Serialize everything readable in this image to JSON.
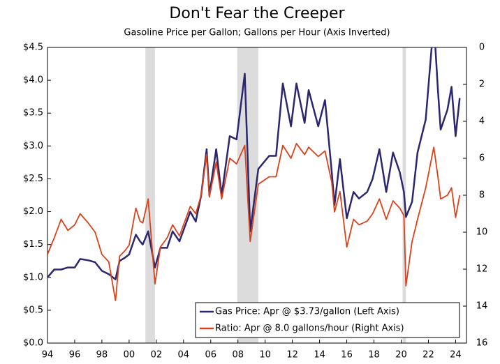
{
  "chart_data": {
    "type": "line",
    "title": "Don't Fear the Creeper",
    "subtitle": "Gasoline Price per Gallon; Gallons per Hour (Axis Inverted)",
    "x": [
      1994.0,
      1994.5,
      1995.0,
      1995.5,
      1996.0,
      1996.4,
      1997.0,
      1997.5,
      1998.0,
      1998.5,
      1999.0,
      1999.3,
      1999.7,
      2000.0,
      2000.5,
      2000.8,
      2001.0,
      2001.4,
      2001.9,
      2002.3,
      2002.8,
      2003.2,
      2003.7,
      2004.5,
      2004.9,
      2005.3,
      2005.7,
      2005.9,
      2006.4,
      2006.8,
      2007.4,
      2007.9,
      2008.5,
      2008.9,
      2009.5,
      2010.3,
      2010.8,
      2011.3,
      2011.9,
      2012.3,
      2012.9,
      2013.2,
      2013.9,
      2014.4,
      2014.9,
      2015.1,
      2015.5,
      2016.0,
      2016.5,
      2016.9,
      2017.5,
      2017.9,
      2018.4,
      2018.9,
      2019.4,
      2019.9,
      2020.2,
      2020.35,
      2020.8,
      2021.2,
      2021.8,
      2022.4,
      2022.7,
      2022.9,
      2023.4,
      2023.7,
      2024.0,
      2024.3
    ],
    "series": [
      {
        "name": "Gas Price: Apr @ $3.73/gallon (Left Axis)",
        "color": "#2b2670",
        "axis": "y",
        "values": [
          1.0,
          1.12,
          1.12,
          1.15,
          1.15,
          1.28,
          1.26,
          1.23,
          1.1,
          1.05,
          0.97,
          1.25,
          1.3,
          1.35,
          1.65,
          1.55,
          1.5,
          1.7,
          1.15,
          1.45,
          1.45,
          1.7,
          1.55,
          2.0,
          1.85,
          2.25,
          2.95,
          2.25,
          2.95,
          2.25,
          3.15,
          3.1,
          4.1,
          1.7,
          2.65,
          2.85,
          2.85,
          3.95,
          3.3,
          3.95,
          3.35,
          3.85,
          3.3,
          3.7,
          2.6,
          2.1,
          2.8,
          1.9,
          2.3,
          2.2,
          2.3,
          2.5,
          2.95,
          2.3,
          2.9,
          2.6,
          2.3,
          1.92,
          2.15,
          2.9,
          3.4,
          4.9,
          3.85,
          3.25,
          3.55,
          3.9,
          3.15,
          3.73
        ]
      },
      {
        "name": "Ratio: Apr @ 8.0 gallons/hour (Right Axis)",
        "color": "#d8421c",
        "axis": "y2",
        "values": [
          11.2,
          10.3,
          9.3,
          9.9,
          9.6,
          9.0,
          9.5,
          10.0,
          11.2,
          11.6,
          13.7,
          11.3,
          11.0,
          10.7,
          8.7,
          9.4,
          9.5,
          8.2,
          12.8,
          10.8,
          10.3,
          9.6,
          10.2,
          8.6,
          9.0,
          8.0,
          5.8,
          8.1,
          6.2,
          8.2,
          6.0,
          6.3,
          5.3,
          10.5,
          7.4,
          7.0,
          7.0,
          5.3,
          6.0,
          5.2,
          5.8,
          5.4,
          5.9,
          5.6,
          7.3,
          8.9,
          7.8,
          10.8,
          9.3,
          9.6,
          9.4,
          9.0,
          8.2,
          9.3,
          8.3,
          8.7,
          9.1,
          12.9,
          10.5,
          9.3,
          7.6,
          5.4,
          7.0,
          8.2,
          8.0,
          7.6,
          9.2,
          8.0
        ]
      }
    ],
    "shaded_ranges": [
      [
        2001.2,
        2001.9
      ],
      [
        2007.95,
        2009.5
      ],
      [
        2020.1,
        2020.35
      ]
    ],
    "shade_color": "#dcdcdc",
    "xlim": [
      1994,
      2024.8
    ],
    "xticks": [
      {
        "value": 1994,
        "label": "94"
      },
      {
        "value": 1996,
        "label": "96"
      },
      {
        "value": 1998,
        "label": "98"
      },
      {
        "value": 2000,
        "label": "00"
      },
      {
        "value": 2002,
        "label": "02"
      },
      {
        "value": 2004,
        "label": "04"
      },
      {
        "value": 2006,
        "label": "06"
      },
      {
        "value": 2008,
        "label": "08"
      },
      {
        "value": 2010,
        "label": "10"
      },
      {
        "value": 2012,
        "label": "12"
      },
      {
        "value": 2014,
        "label": "14"
      },
      {
        "value": 2016,
        "label": "16"
      },
      {
        "value": 2018,
        "label": "18"
      },
      {
        "value": 2020,
        "label": "20"
      },
      {
        "value": 2022,
        "label": "22"
      },
      {
        "value": 2024,
        "label": "24"
      }
    ],
    "ylim": [
      0,
      4.5
    ],
    "yticks": [
      {
        "value": 0,
        "label": "$0.0"
      },
      {
        "value": 0.5,
        "label": "$0.5"
      },
      {
        "value": 1,
        "label": "$1.0"
      },
      {
        "value": 1.5,
        "label": "$1.5"
      },
      {
        "value": 2,
        "label": "$2.0"
      },
      {
        "value": 2.5,
        "label": "$2.5"
      },
      {
        "value": 3,
        "label": "$3.0"
      },
      {
        "value": 3.5,
        "label": "$3.5"
      },
      {
        "value": 4,
        "label": "$4.0"
      },
      {
        "value": 4.5,
        "label": "$4.5"
      }
    ],
    "y2lim": [
      16,
      0
    ],
    "y2ticks": [
      0,
      2,
      4,
      6,
      8,
      10,
      12,
      14,
      16
    ],
    "legend": "lower right"
  }
}
